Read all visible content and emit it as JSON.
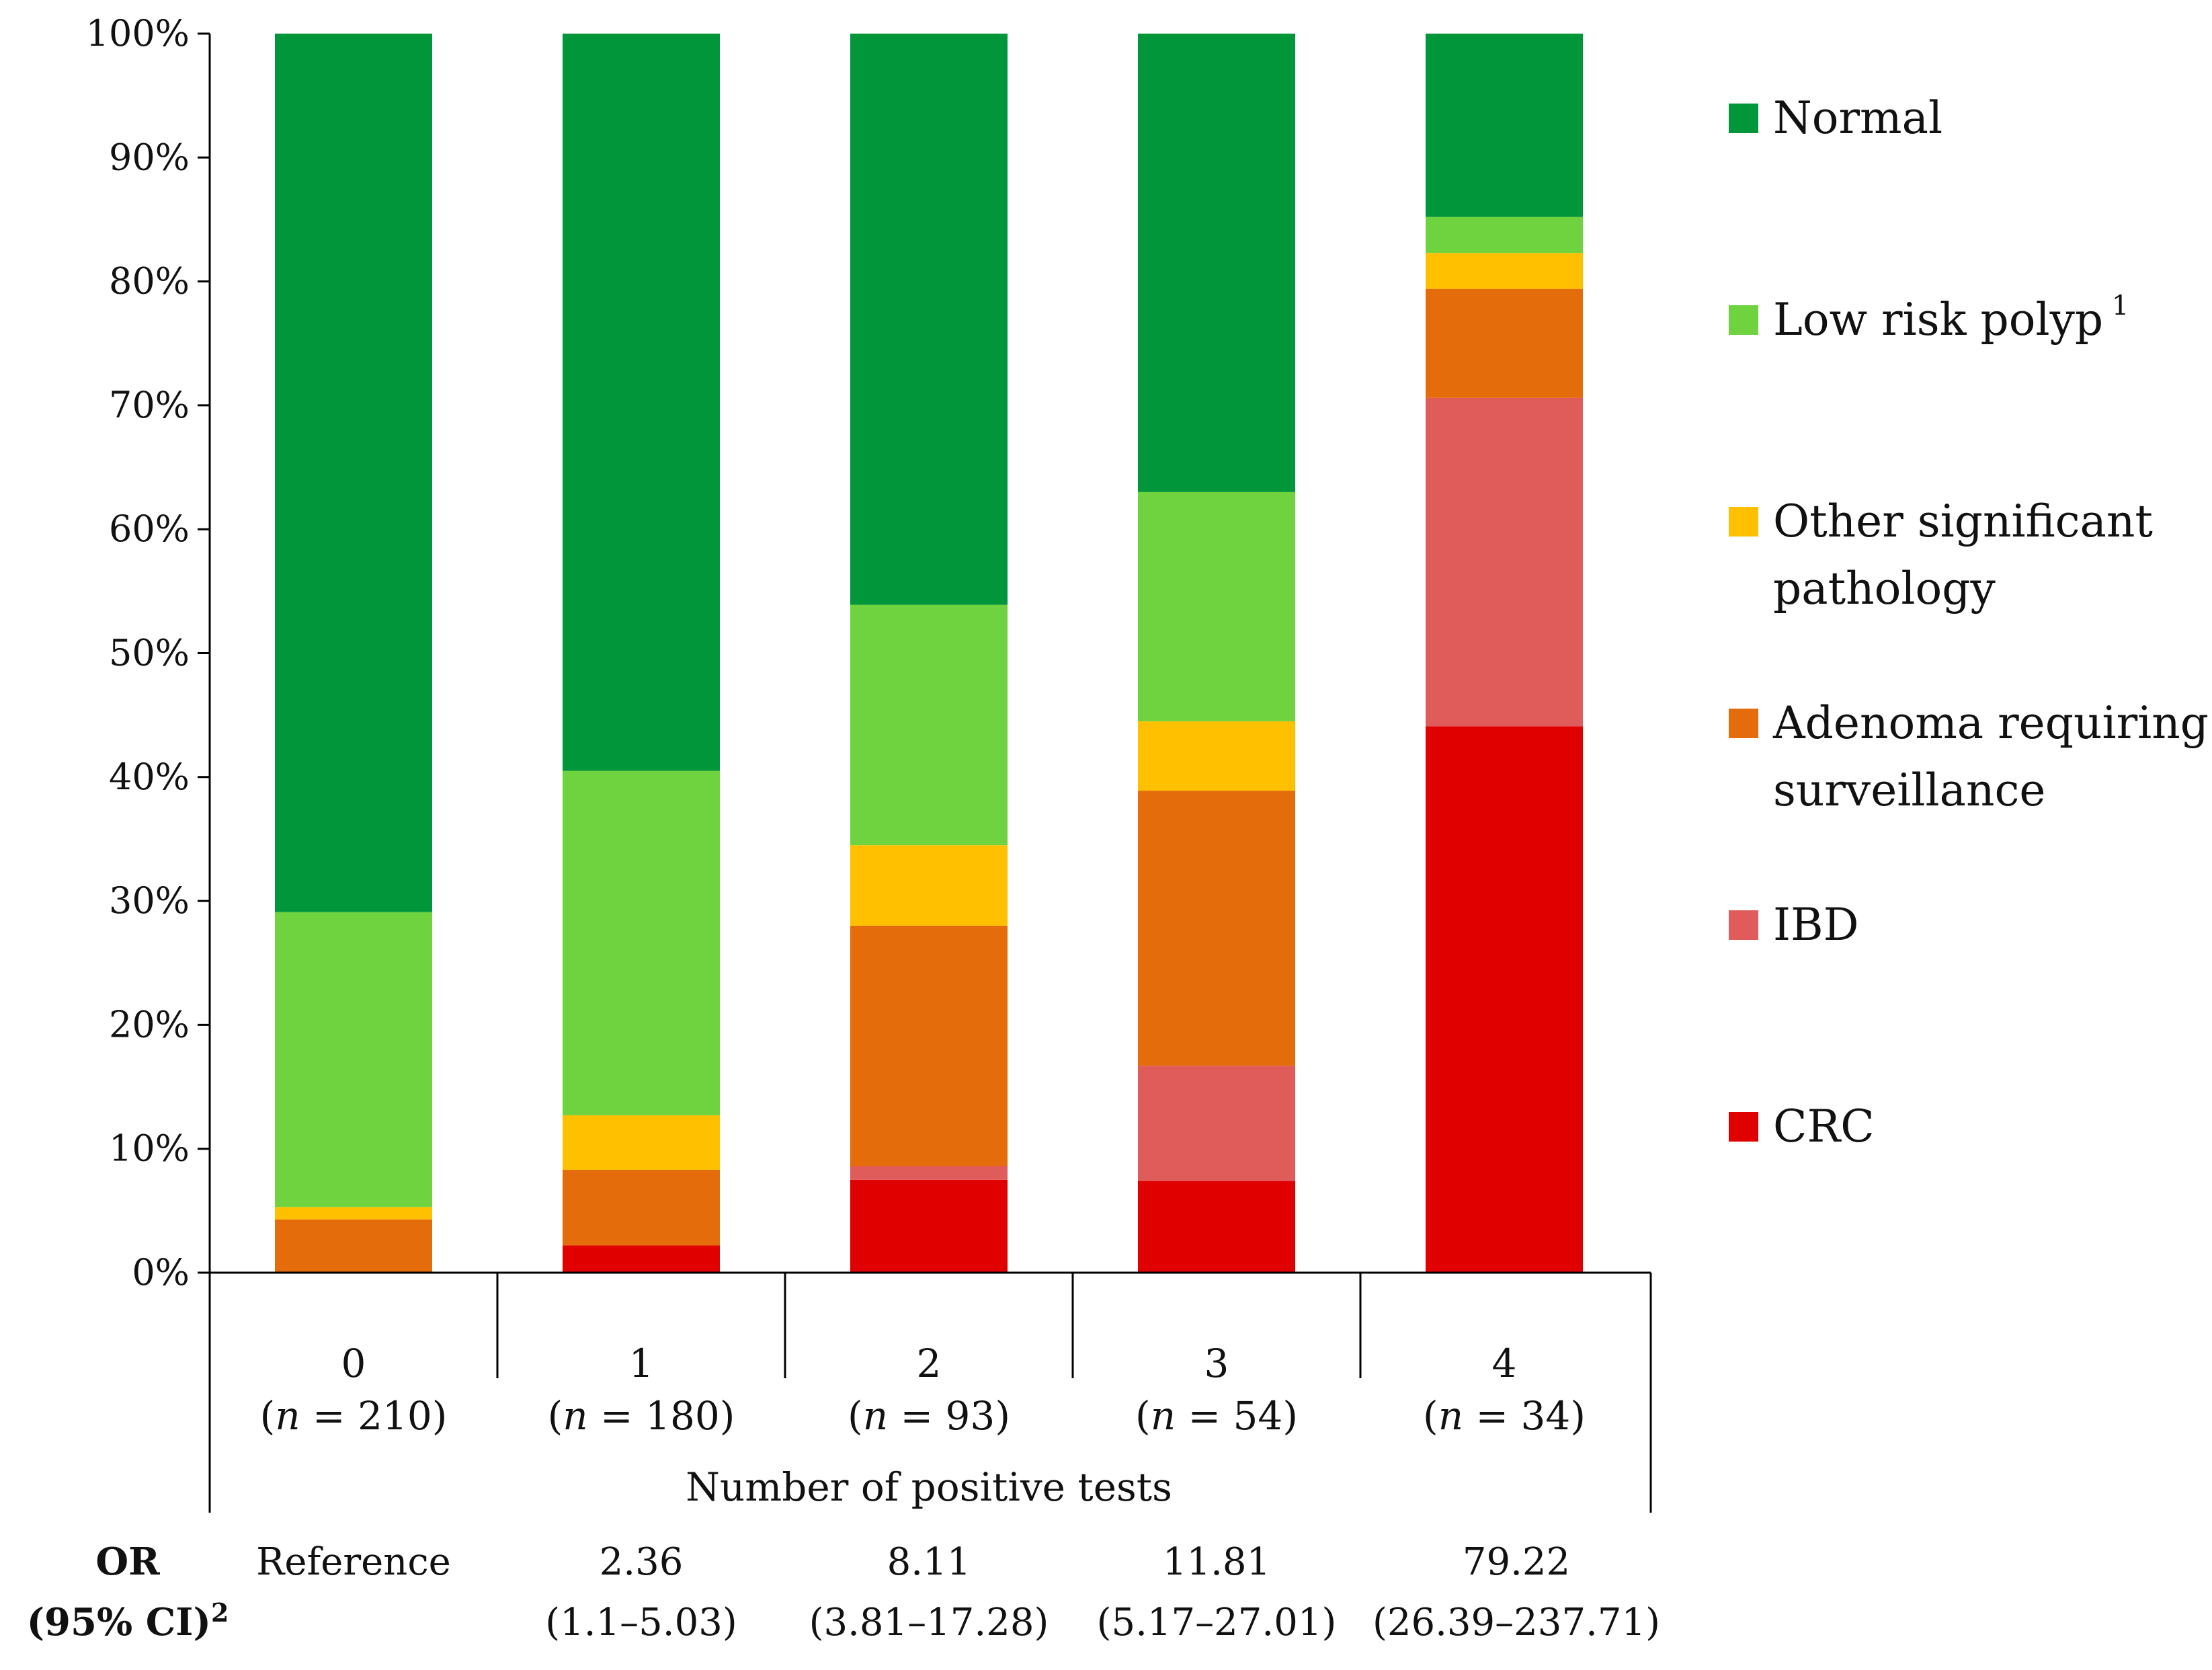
{
  "chart_data": {
    "type": "bar",
    "stacked": true,
    "title": "",
    "xlabel": "Number of positive tests",
    "ylabel": "",
    "ylim": [
      0,
      100
    ],
    "y_ticks": [
      "0%",
      "10%",
      "20%",
      "30%",
      "40%",
      "50%",
      "60%",
      "70%",
      "80%",
      "90%",
      "100%"
    ],
    "categories": [
      "0",
      "1",
      "2",
      "3",
      "4"
    ],
    "n_labels": [
      "(n = 210)",
      "(n = 180)",
      "(n = 93)",
      "(n = 54)",
      "(n = 34)"
    ],
    "n_values": [
      "210",
      "180",
      "93",
      "54",
      "34"
    ],
    "series": [
      {
        "name": "CRC",
        "color": "#e00000",
        "values": [
          0,
          2.2,
          7.5,
          7.4,
          44.1
        ]
      },
      {
        "name": "IBD",
        "color": "#e05c5a",
        "values": [
          0,
          0,
          1.1,
          9.3,
          26.5
        ]
      },
      {
        "name": "Adenoma requiring surveillance",
        "color": "#e46c0a",
        "values": [
          4.3,
          6.1,
          19.4,
          22.2,
          8.8
        ]
      },
      {
        "name": "Other significant pathology",
        "color": "#ffc000",
        "values": [
          1.0,
          4.4,
          6.5,
          5.6,
          2.9
        ]
      },
      {
        "name": "Low risk polyp",
        "color": "#6fd340",
        "values": [
          23.8,
          27.8,
          19.4,
          18.5,
          2.9
        ]
      },
      {
        "name": "Normal",
        "color": "#009639",
        "values": [
          70.9,
          59.5,
          46.1,
          37.0,
          14.8
        ]
      }
    ],
    "legend": {
      "placement": "right",
      "items": [
        {
          "lines": [
            "Normal"
          ],
          "sup": "",
          "color": "#009639"
        },
        {
          "lines": [
            "Low risk polyp"
          ],
          "sup": "1",
          "color": "#6fd340"
        },
        {
          "lines": [
            "Other significant",
            "pathology"
          ],
          "sup": "",
          "color": "#ffc000"
        },
        {
          "lines": [
            "Adenoma requiring",
            "surveillance"
          ],
          "sup": "",
          "color": "#e46c0a"
        },
        {
          "lines": [
            "IBD"
          ],
          "sup": "",
          "color": "#e05c5a"
        },
        {
          "lines": [
            "CRC"
          ],
          "sup": "",
          "color": "#e00000"
        }
      ]
    },
    "or_row": {
      "header_line1": "OR",
      "header_line2": "(95% CI)",
      "header_sup": "2",
      "values": [
        {
          "main": "Reference",
          "ci": ""
        },
        {
          "main": "2.36",
          "ci": "(1.1–5.03)"
        },
        {
          "main": "8.11",
          "ci": "(3.81–17.28)"
        },
        {
          "main": "11.81",
          "ci": "(5.17–27.01)"
        },
        {
          "main": "79.22",
          "ci": "(26.39–237.71)"
        }
      ]
    }
  }
}
